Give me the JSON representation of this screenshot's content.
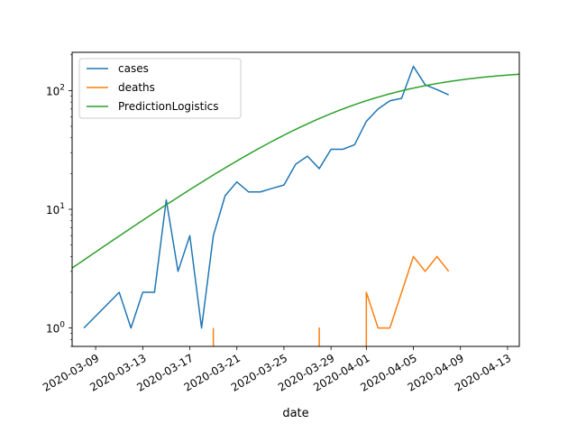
{
  "chart_data": {
    "type": "line",
    "title": "",
    "xlabel": "date",
    "ylabel": "",
    "yscale": "log",
    "ylim": [
      0.7,
      210
    ],
    "xlim": [
      "2020-03-07",
      "2020-04-14"
    ],
    "x_ticks": [
      "2020-03-09",
      "2020-03-13",
      "2020-03-17",
      "2020-03-21",
      "2020-03-25",
      "2020-03-29",
      "2020-04-01",
      "2020-04-05",
      "2020-04-09",
      "2020-04-13"
    ],
    "y_ticks": [
      {
        "value": 1,
        "base": "10",
        "exp": "0"
      },
      {
        "value": 10,
        "base": "10",
        "exp": "1"
      },
      {
        "value": 100,
        "base": "10",
        "exp": "2"
      }
    ],
    "grid": false,
    "legend_position": "top-left",
    "series": [
      {
        "name": "cases",
        "color": "#1f77b4",
        "points": [
          [
            "2020-03-08",
            1
          ],
          [
            "2020-03-11",
            2
          ],
          [
            "2020-03-12",
            1
          ],
          [
            "2020-03-13",
            2
          ],
          [
            "2020-03-14",
            2
          ],
          [
            "2020-03-15",
            12
          ],
          [
            "2020-03-16",
            3
          ],
          [
            "2020-03-17",
            6
          ],
          [
            "2020-03-18",
            1
          ],
          [
            "2020-03-19",
            6
          ],
          [
            "2020-03-20",
            13
          ],
          [
            "2020-03-21",
            17
          ],
          [
            "2020-03-22",
            14
          ],
          [
            "2020-03-23",
            14
          ],
          [
            "2020-03-24",
            15
          ],
          [
            "2020-03-25",
            16
          ],
          [
            "2020-03-26",
            24
          ],
          [
            "2020-03-27",
            28
          ],
          [
            "2020-03-28",
            22
          ],
          [
            "2020-03-29",
            32
          ],
          [
            "2020-03-30",
            32
          ],
          [
            "2020-03-31",
            35
          ],
          [
            "2020-04-01",
            55
          ],
          [
            "2020-04-02",
            70
          ],
          [
            "2020-04-03",
            82
          ],
          [
            "2020-04-04",
            86
          ],
          [
            "2020-04-05",
            160
          ],
          [
            "2020-04-06",
            112
          ],
          [
            "2020-04-07",
            102
          ],
          [
            "2020-04-08",
            92
          ]
        ]
      },
      {
        "name": "deaths",
        "color": "#ff7f0e",
        "points": [
          [
            "2020-03-19",
            1
          ],
          [
            "2020-03-19",
            0.5
          ],
          [
            "2020-03-28",
            0.5
          ],
          [
            "2020-03-28",
            1
          ],
          [
            "2020-03-28",
            0.5
          ],
          [
            "2020-04-01",
            0.5
          ],
          [
            "2020-04-01",
            2
          ],
          [
            "2020-04-02",
            1
          ],
          [
            "2020-04-03",
            1
          ],
          [
            "2020-04-04",
            2
          ],
          [
            "2020-04-05",
            4
          ],
          [
            "2020-04-06",
            3
          ],
          [
            "2020-04-07",
            4
          ],
          [
            "2020-04-08",
            3
          ]
        ]
      },
      {
        "name": "PredictionLogistics",
        "color": "#2ca02c",
        "logistic": {
          "K": 152,
          "r": 0.16,
          "t0": "2020-03-31"
        },
        "x_range": [
          "2020-03-07",
          "2020-04-14"
        ]
      }
    ]
  }
}
